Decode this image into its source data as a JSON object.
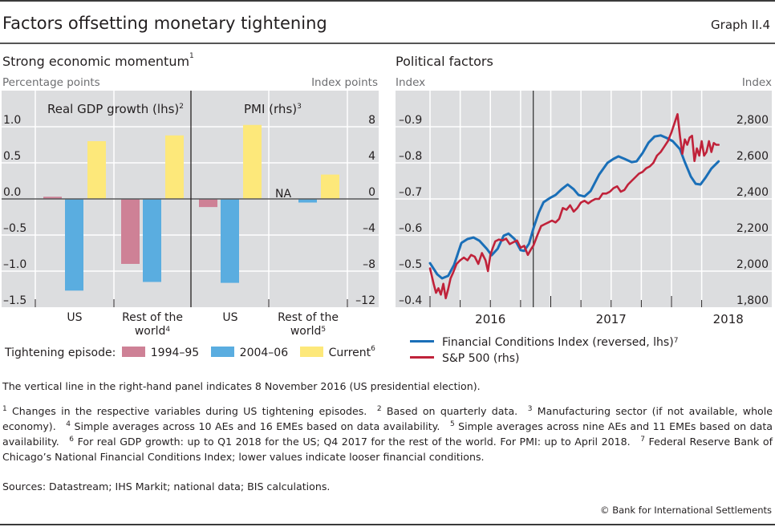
{
  "header": {
    "title": "Factors offsetting monetary tightening",
    "graph_number": "Graph II.4"
  },
  "left_panel": {
    "title": "Strong economic momentum",
    "title_sup": "1",
    "left_unit": "Percentage points",
    "right_unit": "Index points",
    "section_labels": [
      {
        "text": "Real GDP growth (lhs)",
        "sup": "2"
      },
      {
        "text": "PMI (rhs)",
        "sup": "3"
      }
    ],
    "categories": [
      {
        "line1": "US",
        "line2": "",
        "sup": ""
      },
      {
        "line1": "Rest of the",
        "line2": "world",
        "sup": "4"
      },
      {
        "line1": "US",
        "line2": "",
        "sup": ""
      },
      {
        "line1": "Rest of the",
        "line2": "world",
        "sup": "5"
      }
    ],
    "na_label": "NA",
    "legend_prefix": "Tightening episode:",
    "legend": [
      {
        "label": "1994–95",
        "sup": "",
        "color": "#CE8196"
      },
      {
        "label": "2004–06",
        "sup": "",
        "color": "#5AADE0"
      },
      {
        "label": "Current",
        "sup": "6",
        "color": "#FDE87A"
      }
    ]
  },
  "right_panel": {
    "title": "Political factors",
    "left_unit": "Index",
    "right_unit": "Index",
    "legend": [
      {
        "label": "Financial Conditions Index (reversed, lhs)",
        "sup": "7",
        "color": "#1A6FB8"
      },
      {
        "label": "S&P 500 (rhs)",
        "sup": "",
        "color": "#C0223A"
      }
    ]
  },
  "notes": {
    "main": "The vertical line in the right-hand panel indicates 8 November 2016 (US presidential election).",
    "footnotes": [
      {
        "n": "1",
        "text": "Changes in the respective variables during US tightening episodes."
      },
      {
        "n": "2",
        "text": "Based on quarterly data."
      },
      {
        "n": "3",
        "text": "Manufacturing sector (if not available, whole economy)."
      },
      {
        "n": "4",
        "text": "Simple averages across 10 AEs and 16 EMEs based on data availability."
      },
      {
        "n": "5",
        "text": "Simple averages across nine AEs and 11 EMEs based on data availability."
      },
      {
        "n": "6",
        "text": "For real GDP growth: up to Q1 2018 for the US; Q4 2017 for the rest of the world. For PMI: up to April 2018."
      },
      {
        "n": "7",
        "text": "Federal Reserve Bank of Chicago’s National Financial Conditions Index; lower values indicate looser financial conditions."
      }
    ],
    "sources": "Sources: Datastream; IHS Markit; national data; BIS calculations.",
    "copyright": "© Bank for International Settlements"
  },
  "chart_data": [
    {
      "type": "bar",
      "title": "Strong economic momentum",
      "xlabel": "",
      "ylabel": "Percentage points",
      "ylabel_right": "Index points",
      "grid": true,
      "legend_position": "bottom",
      "groups": [
        {
          "name": "Real GDP growth (lhs)",
          "axis": "left",
          "categories": [
            "US",
            "Rest of the world"
          ],
          "series": [
            {
              "name": "1994–95",
              "values": [
                0.03,
                -0.9
              ]
            },
            {
              "name": "2004–06",
              "values": [
                -1.27,
                -1.15
              ]
            },
            {
              "name": "Current",
              "values": [
                0.8,
                0.88
              ]
            }
          ]
        },
        {
          "name": "PMI (rhs)",
          "axis": "right",
          "categories": [
            "US",
            "Rest of the world"
          ],
          "series": [
            {
              "name": "1994–95",
              "values": [
                -0.9,
                null
              ]
            },
            {
              "name": "2004–06",
              "values": [
                -9.3,
                -0.4
              ]
            },
            {
              "name": "Current",
              "values": [
                8.2,
                2.7
              ]
            }
          ]
        }
      ],
      "ylim": [
        -1.5,
        1.5
      ],
      "ylim_right": [
        -12,
        12
      ],
      "yticks": [
        "1.0",
        "0.5",
        "0.0",
        "–0.5",
        "–1.0",
        "–1.5"
      ],
      "yticks_values": [
        1.0,
        0.5,
        0.0,
        -0.5,
        -1.0,
        -1.5
      ],
      "yticks_right": [
        "8",
        "4",
        "0",
        "–4",
        "–8",
        "–12"
      ],
      "yticks_right_values": [
        8,
        4,
        0,
        -4,
        -8,
        -12
      ]
    },
    {
      "type": "line",
      "title": "Political factors",
      "xlabel": "",
      "ylabel": "Index",
      "ylabel_right": "Index",
      "grid": true,
      "legend_position": "bottom",
      "xlim": [
        2016.0,
        2018.5
      ],
      "xticks": [
        "2016",
        "2017",
        "2018"
      ],
      "ylim": [
        -0.4,
        -1.0
      ],
      "ylim_note": "left axis reversed",
      "yticks": [
        "–0.9",
        "–0.8",
        "–0.7",
        "–0.6",
        "–0.5",
        "–0.4"
      ],
      "yticks_values": [
        -0.9,
        -0.8,
        -0.7,
        -0.6,
        -0.5,
        -0.4
      ],
      "ylim_right": [
        1800,
        2800
      ],
      "yticks_right": [
        "2,800",
        "2,600",
        "2,400",
        "2,200",
        "2,000",
        "1,800"
      ],
      "yticks_right_values": [
        2800,
        2600,
        2400,
        2200,
        2000,
        1800
      ],
      "vline": {
        "x": 2016.855,
        "label": "8 November 2016"
      },
      "series": [
        {
          "name": "Financial Conditions Index (reversed, lhs)",
          "axis": "left",
          "x": [
            2016.0,
            2016.06,
            2016.1,
            2016.15,
            2016.2,
            2016.26,
            2016.31,
            2016.36,
            2016.41,
            2016.47,
            2016.51,
            2016.56,
            2016.61,
            2016.65,
            2016.7,
            2016.75,
            2016.78,
            2016.82,
            2016.86,
            2016.9,
            2016.94,
            2016.99,
            2017.04,
            2017.09,
            2017.14,
            2017.19,
            2017.23,
            2017.28,
            2017.33,
            2017.4,
            2017.47,
            2017.52,
            2017.56,
            2017.61,
            2017.67,
            2017.71,
            2017.76,
            2017.81,
            2017.86,
            2017.91,
            2017.96,
            2018.01,
            2018.07,
            2018.11,
            2018.16,
            2018.2,
            2018.24,
            2018.28,
            2018.33,
            2018.39
          ],
          "y": [
            -0.522,
            -0.491,
            -0.48,
            -0.487,
            -0.518,
            -0.578,
            -0.589,
            -0.593,
            -0.584,
            -0.562,
            -0.544,
            -0.562,
            -0.598,
            -0.604,
            -0.589,
            -0.558,
            -0.556,
            -0.576,
            -0.622,
            -0.662,
            -0.691,
            -0.702,
            -0.711,
            -0.727,
            -0.74,
            -0.727,
            -0.711,
            -0.707,
            -0.722,
            -0.767,
            -0.8,
            -0.811,
            -0.818,
            -0.811,
            -0.802,
            -0.804,
            -0.827,
            -0.856,
            -0.873,
            -0.876,
            -0.869,
            -0.86,
            -0.838,
            -0.802,
            -0.762,
            -0.742,
            -0.74,
            -0.758,
            -0.784,
            -0.804
          ]
        },
        {
          "name": "S&P 500 (rhs)",
          "axis": "right",
          "x": [
            2016.0,
            2016.03,
            2016.05,
            2016.07,
            2016.09,
            2016.11,
            2016.13,
            2016.15,
            2016.17,
            2016.19,
            2016.22,
            2016.25,
            2016.28,
            2016.31,
            2016.34,
            2016.37,
            2016.4,
            2016.43,
            2016.46,
            2016.48,
            2016.5,
            2016.52,
            2016.54,
            2016.57,
            2016.6,
            2016.63,
            2016.66,
            2016.69,
            2016.72,
            2016.75,
            2016.78,
            2016.81,
            2016.84,
            2016.855,
            2016.87,
            2016.89,
            2016.92,
            2016.95,
            2016.98,
            2017.01,
            2017.04,
            2017.07,
            2017.1,
            2017.13,
            2017.16,
            2017.19,
            2017.22,
            2017.25,
            2017.28,
            2017.31,
            2017.34,
            2017.37,
            2017.4,
            2017.43,
            2017.46,
            2017.49,
            2017.52,
            2017.55,
            2017.58,
            2017.61,
            2017.64,
            2017.67,
            2017.7,
            2017.73,
            2017.76,
            2017.79,
            2017.82,
            2017.85,
            2017.88,
            2017.91,
            2017.94,
            2017.97,
            2018.0,
            2018.03,
            2018.05,
            2018.07,
            2018.09,
            2018.11,
            2018.13,
            2018.15,
            2018.17,
            2018.19,
            2018.21,
            2018.23,
            2018.25,
            2018.27,
            2018.29,
            2018.31,
            2018.33,
            2018.35,
            2018.37,
            2018.39
          ],
          "y": [
            2015,
            1930,
            1880,
            1905,
            1870,
            1930,
            1850,
            1900,
            1960,
            1990,
            2040,
            2060,
            2075,
            2060,
            2090,
            2080,
            2040,
            2100,
            2060,
            2000,
            2090,
            2130,
            2165,
            2175,
            2170,
            2180,
            2150,
            2160,
            2170,
            2130,
            2140,
            2090,
            2125,
            2140,
            2165,
            2200,
            2250,
            2260,
            2270,
            2280,
            2270,
            2290,
            2350,
            2340,
            2365,
            2330,
            2350,
            2380,
            2390,
            2375,
            2390,
            2400,
            2400,
            2430,
            2430,
            2440,
            2460,
            2470,
            2440,
            2450,
            2480,
            2500,
            2520,
            2540,
            2550,
            2570,
            2580,
            2600,
            2640,
            2660,
            2690,
            2720,
            2770,
            2830,
            2870,
            2750,
            2650,
            2730,
            2700,
            2740,
            2750,
            2610,
            2680,
            2640,
            2720,
            2640,
            2660,
            2720,
            2660,
            2710,
            2700,
            2700
          ]
        }
      ]
    }
  ]
}
